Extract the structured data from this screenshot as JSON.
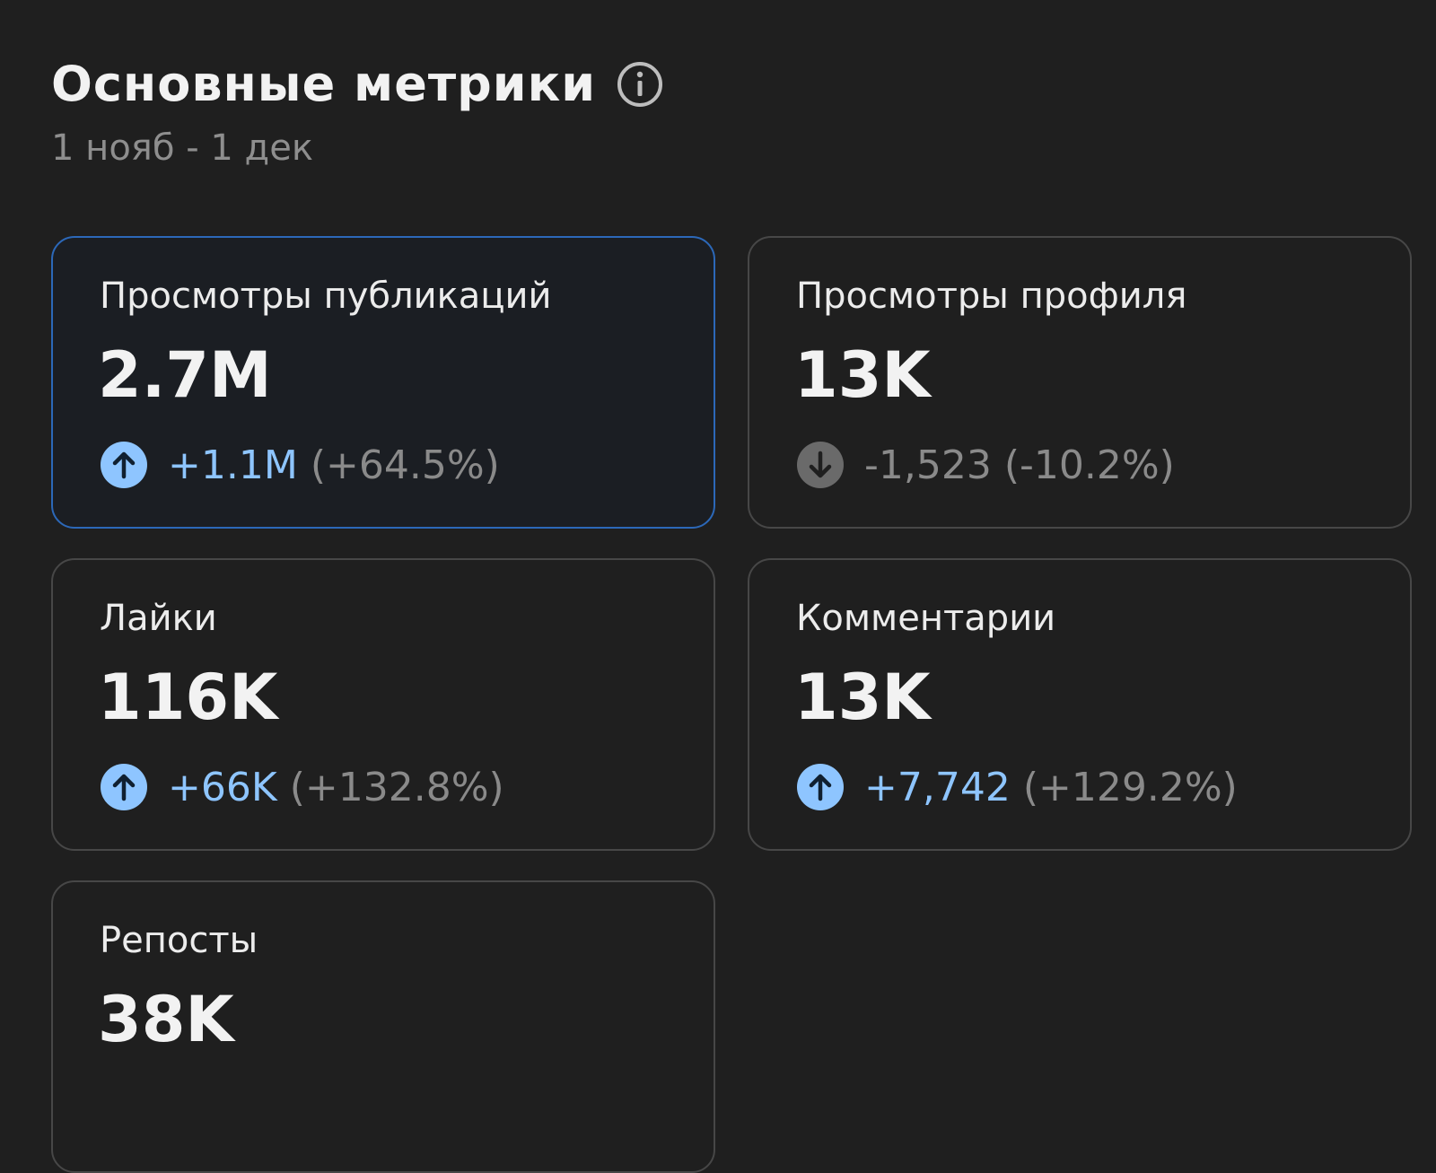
{
  "header": {
    "title": "Основные метрики",
    "subtitle": "1 нояб - 1 дек"
  },
  "cards": [
    {
      "label": "Просмотры публикаций",
      "value": "2.7M",
      "change": "+1.1M",
      "percent": "(+64.5%)",
      "trend": "up",
      "selected": true
    },
    {
      "label": "Просмотры профиля",
      "value": "13K",
      "change": "-1,523",
      "percent": "(-10.2%)",
      "trend": "down",
      "selected": false
    },
    {
      "label": "Лайки",
      "value": "116K",
      "change": "+66K",
      "percent": "(+132.8%)",
      "trend": "up",
      "selected": false
    },
    {
      "label": "Комментарии",
      "value": "13K",
      "change": "+7,742",
      "percent": "(+129.2%)",
      "trend": "up",
      "selected": false
    },
    {
      "label": "Репосты",
      "value": "38K",
      "selected": false
    }
  ]
}
